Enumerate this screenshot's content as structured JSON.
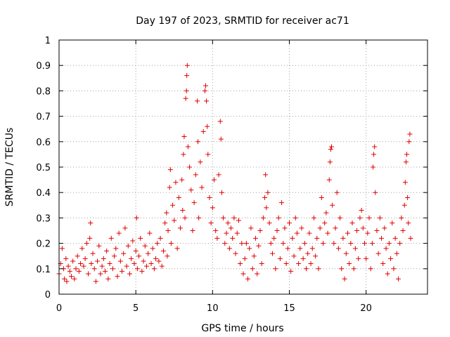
{
  "chart_data": {
    "type": "scatter",
    "title": "Day 197 of 2023, SRMTID for receiver ac71",
    "xlabel": "GPS time / hours",
    "ylabel": "SRMTID / TECUs",
    "xlim": [
      0,
      24
    ],
    "ylim": [
      0,
      1
    ],
    "xticks": [
      "0",
      "5",
      "10",
      "15",
      "20"
    ],
    "xtick_values": [
      0,
      5,
      10,
      15,
      20
    ],
    "yticks": [
      "0",
      "0.1",
      "0.2",
      "0.3",
      "0.4",
      "0.5",
      "0.6",
      "0.7",
      "0.8",
      "0.9",
      "1"
    ],
    "ytick_values": [
      0,
      0.1,
      0.2,
      0.3,
      0.4,
      0.5,
      0.6,
      0.7,
      0.8,
      0.9,
      1
    ],
    "grid": true,
    "marker": "+",
    "color": "#e00000",
    "series": [
      {
        "name": "SRMTID",
        "points": [
          [
            0.0,
            0.08
          ],
          [
            0.1,
            0.12
          ],
          [
            0.2,
            0.18
          ],
          [
            0.3,
            0.1
          ],
          [
            0.35,
            0.06
          ],
          [
            0.45,
            0.14
          ],
          [
            0.5,
            0.05
          ],
          [
            0.6,
            0.11
          ],
          [
            0.7,
            0.09
          ],
          [
            0.8,
            0.07
          ],
          [
            0.9,
            0.13
          ],
          [
            1.0,
            0.06
          ],
          [
            1.1,
            0.1
          ],
          [
            1.2,
            0.15
          ],
          [
            1.3,
            0.09
          ],
          [
            1.4,
            0.12
          ],
          [
            1.5,
            0.18
          ],
          [
            1.6,
            0.11
          ],
          [
            1.7,
            0.14
          ],
          [
            1.8,
            0.2
          ],
          [
            1.9,
            0.08
          ],
          [
            2.0,
            0.22
          ],
          [
            2.05,
            0.28
          ],
          [
            2.1,
            0.12
          ],
          [
            2.2,
            0.16
          ],
          [
            2.3,
            0.1
          ],
          [
            2.4,
            0.05
          ],
          [
            2.5,
            0.13
          ],
          [
            2.6,
            0.19
          ],
          [
            2.7,
            0.08
          ],
          [
            2.8,
            0.11
          ],
          [
            2.9,
            0.14
          ],
          [
            3.0,
            0.09
          ],
          [
            3.1,
            0.17
          ],
          [
            3.2,
            0.06
          ],
          [
            3.3,
            0.12
          ],
          [
            3.4,
            0.22
          ],
          [
            3.5,
            0.1
          ],
          [
            3.6,
            0.15
          ],
          [
            3.7,
            0.18
          ],
          [
            3.8,
            0.07
          ],
          [
            3.9,
            0.24
          ],
          [
            4.0,
            0.13
          ],
          [
            4.1,
            0.09
          ],
          [
            4.2,
            0.16
          ],
          [
            4.3,
            0.26
          ],
          [
            4.4,
            0.11
          ],
          [
            4.5,
            0.19
          ],
          [
            4.6,
            0.08
          ],
          [
            4.7,
            0.14
          ],
          [
            4.8,
            0.21
          ],
          [
            4.9,
            0.12
          ],
          [
            5.0,
            0.17
          ],
          [
            5.05,
            0.3
          ],
          [
            5.1,
            0.1
          ],
          [
            5.2,
            0.15
          ],
          [
            5.3,
            0.22
          ],
          [
            5.4,
            0.09
          ],
          [
            5.5,
            0.13
          ],
          [
            5.6,
            0.19
          ],
          [
            5.7,
            0.11
          ],
          [
            5.8,
            0.16
          ],
          [
            5.9,
            0.24
          ],
          [
            6.0,
            0.12
          ],
          [
            6.1,
            0.18
          ],
          [
            6.2,
            0.1
          ],
          [
            6.3,
            0.14
          ],
          [
            6.4,
            0.2
          ],
          [
            6.5,
            0.13
          ],
          [
            6.6,
            0.22
          ],
          [
            6.7,
            0.11
          ],
          [
            6.8,
            0.17
          ],
          [
            6.9,
            0.28
          ],
          [
            7.0,
            0.32
          ],
          [
            7.05,
            0.15
          ],
          [
            7.1,
            0.25
          ],
          [
            7.2,
            0.42
          ],
          [
            7.25,
            0.49
          ],
          [
            7.3,
            0.2
          ],
          [
            7.4,
            0.35
          ],
          [
            7.5,
            0.29
          ],
          [
            7.6,
            0.44
          ],
          [
            7.7,
            0.18
          ],
          [
            7.8,
            0.38
          ],
          [
            7.9,
            0.26
          ],
          [
            8.0,
            0.45
          ],
          [
            8.05,
            0.33
          ],
          [
            8.1,
            0.55
          ],
          [
            8.15,
            0.62
          ],
          [
            8.2,
            0.3
          ],
          [
            8.25,
            0.77
          ],
          [
            8.3,
            0.8
          ],
          [
            8.32,
            0.86
          ],
          [
            8.35,
            0.9
          ],
          [
            8.4,
            0.58
          ],
          [
            8.5,
            0.5
          ],
          [
            8.6,
            0.41
          ],
          [
            8.7,
            0.25
          ],
          [
            8.8,
            0.36
          ],
          [
            8.9,
            0.47
          ],
          [
            9.0,
            0.76
          ],
          [
            9.05,
            0.6
          ],
          [
            9.1,
            0.3
          ],
          [
            9.2,
            0.52
          ],
          [
            9.3,
            0.42
          ],
          [
            9.4,
            0.64
          ],
          [
            9.5,
            0.8
          ],
          [
            9.55,
            0.82
          ],
          [
            9.6,
            0.76
          ],
          [
            9.65,
            0.66
          ],
          [
            9.7,
            0.55
          ],
          [
            9.8,
            0.38
          ],
          [
            9.9,
            0.28
          ],
          [
            10.0,
            0.34
          ],
          [
            10.1,
            0.45
          ],
          [
            10.2,
            0.25
          ],
          [
            10.3,
            0.22
          ],
          [
            10.4,
            0.47
          ],
          [
            10.5,
            0.68
          ],
          [
            10.55,
            0.61
          ],
          [
            10.6,
            0.4
          ],
          [
            10.7,
            0.3
          ],
          [
            10.8,
            0.2
          ],
          [
            10.9,
            0.24
          ],
          [
            11.0,
            0.28
          ],
          [
            11.1,
            0.18
          ],
          [
            11.2,
            0.26
          ],
          [
            11.3,
            0.22
          ],
          [
            11.4,
            0.3
          ],
          [
            11.5,
            0.16
          ],
          [
            11.6,
            0.24
          ],
          [
            11.7,
            0.29
          ],
          [
            11.8,
            0.12
          ],
          [
            11.9,
            0.2
          ],
          [
            12.0,
            0.08
          ],
          [
            12.1,
            0.14
          ],
          [
            12.2,
            0.2
          ],
          [
            12.3,
            0.06
          ],
          [
            12.4,
            0.18
          ],
          [
            12.5,
            0.26
          ],
          [
            12.6,
            0.1
          ],
          [
            12.7,
            0.15
          ],
          [
            12.8,
            0.22
          ],
          [
            12.9,
            0.08
          ],
          [
            13.0,
            0.19
          ],
          [
            13.1,
            0.25
          ],
          [
            13.2,
            0.12
          ],
          [
            13.3,
            0.3
          ],
          [
            13.4,
            0.38
          ],
          [
            13.45,
            0.47
          ],
          [
            13.5,
            0.34
          ],
          [
            13.6,
            0.4
          ],
          [
            13.7,
            0.28
          ],
          [
            13.8,
            0.2
          ],
          [
            13.9,
            0.16
          ],
          [
            14.0,
            0.22
          ],
          [
            14.1,
            0.1
          ],
          [
            14.2,
            0.25
          ],
          [
            14.3,
            0.3
          ],
          [
            14.4,
            0.14
          ],
          [
            14.5,
            0.36
          ],
          [
            14.6,
            0.2
          ],
          [
            14.7,
            0.26
          ],
          [
            14.8,
            0.12
          ],
          [
            14.9,
            0.18
          ],
          [
            15.0,
            0.28
          ],
          [
            15.1,
            0.09
          ],
          [
            15.2,
            0.22
          ],
          [
            15.3,
            0.15
          ],
          [
            15.4,
            0.3
          ],
          [
            15.5,
            0.24
          ],
          [
            15.6,
            0.12
          ],
          [
            15.7,
            0.18
          ],
          [
            15.8,
            0.26
          ],
          [
            15.9,
            0.14
          ],
          [
            16.0,
            0.2
          ],
          [
            16.1,
            0.1
          ],
          [
            16.2,
            0.16
          ],
          [
            16.3,
            0.24
          ],
          [
            16.4,
            0.12
          ],
          [
            16.5,
            0.18
          ],
          [
            16.6,
            0.3
          ],
          [
            16.7,
            0.15
          ],
          [
            16.8,
            0.22
          ],
          [
            16.9,
            0.1
          ],
          [
            17.0,
            0.26
          ],
          [
            17.1,
            0.38
          ],
          [
            17.2,
            0.2
          ],
          [
            17.3,
            0.28
          ],
          [
            17.4,
            0.32
          ],
          [
            17.5,
            0.24
          ],
          [
            17.6,
            0.45
          ],
          [
            17.65,
            0.52
          ],
          [
            17.7,
            0.57
          ],
          [
            17.75,
            0.58
          ],
          [
            17.8,
            0.35
          ],
          [
            17.9,
            0.2
          ],
          [
            18.0,
            0.26
          ],
          [
            18.1,
            0.4
          ],
          [
            18.2,
            0.18
          ],
          [
            18.3,
            0.3
          ],
          [
            18.4,
            0.1
          ],
          [
            18.5,
            0.22
          ],
          [
            18.6,
            0.06
          ],
          [
            18.7,
            0.16
          ],
          [
            18.8,
            0.24
          ],
          [
            18.9,
            0.12
          ],
          [
            19.0,
            0.2
          ],
          [
            19.1,
            0.28
          ],
          [
            19.2,
            0.1
          ],
          [
            19.3,
            0.18
          ],
          [
            19.4,
            0.25
          ],
          [
            19.5,
            0.14
          ],
          [
            19.6,
            0.3
          ],
          [
            19.7,
            0.33
          ],
          [
            19.8,
            0.26
          ],
          [
            19.9,
            0.2
          ],
          [
            20.0,
            0.14
          ],
          [
            20.1,
            0.24
          ],
          [
            20.2,
            0.3
          ],
          [
            20.3,
            0.1
          ],
          [
            20.4,
            0.2
          ],
          [
            20.45,
            0.5
          ],
          [
            20.5,
            0.55
          ],
          [
            20.55,
            0.58
          ],
          [
            20.6,
            0.4
          ],
          [
            20.7,
            0.25
          ],
          [
            20.8,
            0.16
          ],
          [
            20.9,
            0.3
          ],
          [
            21.0,
            0.22
          ],
          [
            21.1,
            0.12
          ],
          [
            21.2,
            0.26
          ],
          [
            21.3,
            0.18
          ],
          [
            21.4,
            0.08
          ],
          [
            21.5,
            0.2
          ],
          [
            21.6,
            0.14
          ],
          [
            21.7,
            0.28
          ],
          [
            21.8,
            0.1
          ],
          [
            21.9,
            0.22
          ],
          [
            22.0,
            0.16
          ],
          [
            22.1,
            0.06
          ],
          [
            22.2,
            0.2
          ],
          [
            22.3,
            0.3
          ],
          [
            22.4,
            0.25
          ],
          [
            22.5,
            0.35
          ],
          [
            22.55,
            0.44
          ],
          [
            22.6,
            0.52
          ],
          [
            22.65,
            0.55
          ],
          [
            22.7,
            0.38
          ],
          [
            22.75,
            0.28
          ],
          [
            22.8,
            0.6
          ],
          [
            22.85,
            0.63
          ],
          [
            22.9,
            0.22
          ]
        ]
      }
    ]
  }
}
